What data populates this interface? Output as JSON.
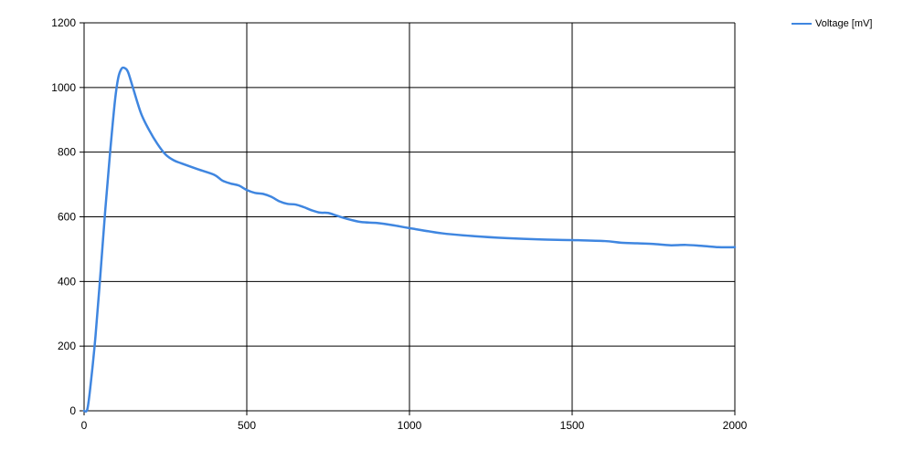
{
  "chart_data": {
    "type": "line",
    "title": "",
    "xlabel": "",
    "ylabel": "",
    "xlim": [
      0,
      2000
    ],
    "ylim": [
      0,
      1200
    ],
    "xticks": [
      0,
      500,
      1000,
      1500,
      2000
    ],
    "yticks": [
      0,
      200,
      400,
      600,
      800,
      1000,
      1200
    ],
    "grid": true,
    "legend_position": "top-right",
    "series": [
      {
        "name": "Voltage [mV]",
        "color": "#3f86e0",
        "x": [
          0,
          10,
          20,
          35,
          50,
          65,
          80,
          95,
          105,
          115,
          125,
          135,
          150,
          175,
          200,
          225,
          250,
          275,
          300,
          350,
          400,
          425,
          450,
          475,
          500,
          525,
          550,
          575,
          600,
          625,
          650,
          675,
          700,
          725,
          750,
          775,
          800,
          850,
          900,
          950,
          1000,
          1100,
          1200,
          1300,
          1400,
          1500,
          1600,
          1650,
          1700,
          1750,
          1800,
          1850,
          1900,
          1950,
          2000
        ],
        "y": [
          0,
          5,
          80,
          230,
          420,
          620,
          800,
          960,
          1030,
          1058,
          1060,
          1048,
          1000,
          920,
          868,
          826,
          793,
          775,
          765,
          747,
          730,
          712,
          703,
          697,
          683,
          674,
          671,
          662,
          648,
          640,
          638,
          630,
          620,
          613,
          612,
          604,
          596,
          584,
          581,
          574,
          565,
          549,
          540,
          534,
          530,
          528,
          525,
          520,
          518,
          516,
          512,
          513,
          510,
          506,
          506
        ]
      }
    ]
  }
}
